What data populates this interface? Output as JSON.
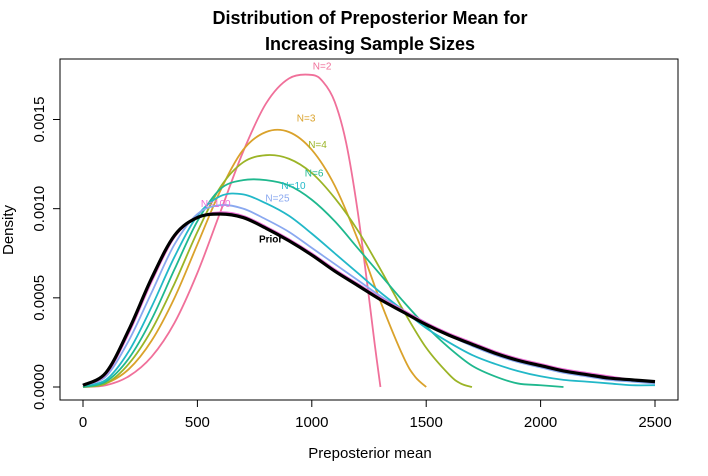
{
  "chart_data": {
    "type": "line",
    "title": [
      "Distribution of Preposterior Mean for",
      "Increasing Sample Sizes"
    ],
    "xlabel": "Preposterior mean",
    "ylabel": "Density",
    "xlim": [
      0,
      2500
    ],
    "ylim": [
      0,
      0.0018
    ],
    "x_ticks": [
      {
        "value": 0,
        "label": "0"
      },
      {
        "value": 500,
        "label": "500"
      },
      {
        "value": 1000,
        "label": "1000"
      },
      {
        "value": 1500,
        "label": "1500"
      },
      {
        "value": 2000,
        "label": "2000"
      },
      {
        "value": 2500,
        "label": "2500"
      }
    ],
    "y_ticks": [
      {
        "value": 0,
        "label": "0.0000"
      },
      {
        "value": 0.0005,
        "label": "0.0005"
      },
      {
        "value": 0.001,
        "label": "0.0010"
      },
      {
        "value": 0.0015,
        "label": "0.0015"
      }
    ],
    "grid": false,
    "series": [
      {
        "name": "N=2",
        "color": "#f0709a",
        "label_at": [
          1045,
          0.00178
        ],
        "x": [
          0,
          100,
          200,
          300,
          400,
          500,
          600,
          700,
          800,
          900,
          1000,
          1050,
          1100,
          1150,
          1200,
          1250,
          1275,
          1300
        ],
        "y": [
          0.0,
          1e-05,
          6e-05,
          0.00017,
          0.00036,
          0.00064,
          0.00098,
          0.00132,
          0.00159,
          0.00173,
          0.00175,
          0.00171,
          0.0016,
          0.00137,
          0.00099,
          0.0005,
          0.00024,
          0.0
        ]
      },
      {
        "name": "N=3",
        "color": "#daa22b",
        "label_at": [
          975,
          0.00149
        ],
        "x": [
          0,
          100,
          200,
          300,
          400,
          500,
          600,
          700,
          800,
          900,
          1000,
          1100,
          1200,
          1300,
          1400,
          1450,
          1500
        ],
        "y": [
          0.0,
          2e-05,
          0.0001,
          0.00026,
          0.0005,
          0.0008,
          0.0011,
          0.00133,
          0.00143,
          0.00143,
          0.00133,
          0.00113,
          0.00083,
          0.00048,
          0.00017,
          6e-05,
          0.0
        ]
      },
      {
        "name": "N=4",
        "color": "#9bb426",
        "label_at": [
          1025,
          0.00134
        ],
        "x": [
          0,
          100,
          200,
          300,
          400,
          500,
          600,
          700,
          800,
          900,
          1000,
          1100,
          1200,
          1300,
          1400,
          1500,
          1600,
          1650,
          1700
        ],
        "y": [
          0.0,
          2e-05,
          0.00013,
          0.00032,
          0.00058,
          0.00087,
          0.00112,
          0.00126,
          0.0013,
          0.00128,
          0.0012,
          0.00106,
          0.00088,
          0.00066,
          0.00043,
          0.00022,
          7e-05,
          2e-05,
          0.0
        ]
      },
      {
        "name": "N=6",
        "color": "#1fb88e",
        "label_at": [
          1010,
          0.00118
        ],
        "x": [
          0,
          100,
          200,
          300,
          400,
          500,
          600,
          700,
          800,
          900,
          1000,
          1100,
          1200,
          1300,
          1400,
          1500,
          1600,
          1700,
          1800,
          1900,
          2000,
          2100
        ],
        "y": [
          0.0,
          3e-05,
          0.00016,
          0.00038,
          0.00066,
          0.00093,
          0.00111,
          0.00116,
          0.00116,
          0.00113,
          0.00105,
          0.00093,
          0.00078,
          0.00063,
          0.00048,
          0.00034,
          0.00022,
          0.00012,
          6e-05,
          2e-05,
          1e-05,
          0.0
        ]
      },
      {
        "name": "N=10",
        "color": "#22b8c8",
        "label_at": [
          920,
          0.00111
        ],
        "x": [
          0,
          100,
          200,
          300,
          400,
          500,
          600,
          700,
          800,
          900,
          1000,
          1100,
          1200,
          1300,
          1400,
          1500,
          1600,
          1700,
          1800,
          1900,
          2000,
          2100,
          2200,
          2300,
          2400,
          2500
        ],
        "y": [
          1e-05,
          4e-05,
          0.0002,
          0.00045,
          0.00073,
          0.00096,
          0.00107,
          0.00108,
          0.00103,
          0.00096,
          0.00086,
          0.00075,
          0.00064,
          0.00053,
          0.00043,
          0.00033,
          0.00025,
          0.00018,
          0.00013,
          9e-05,
          6e-05,
          4e-05,
          3e-05,
          2e-05,
          1e-05,
          1e-05
        ]
      },
      {
        "name": "N=25",
        "color": "#8aa8f0",
        "label_at": [
          850,
          0.00104
        ],
        "x": [
          0,
          100,
          200,
          300,
          400,
          500,
          600,
          700,
          800,
          900,
          1000,
          1100,
          1200,
          1300,
          1400,
          1500,
          1600,
          1700,
          1800,
          1900,
          2000,
          2100,
          2200,
          2300,
          2400,
          2500
        ],
        "y": [
          1e-05,
          6e-05,
          0.00026,
          0.00053,
          0.0008,
          0.00097,
          0.00102,
          0.001,
          0.00094,
          0.00087,
          0.00078,
          0.00069,
          0.0006,
          0.00051,
          0.00043,
          0.00036,
          0.00029,
          0.00023,
          0.00018,
          0.00014,
          0.00011,
          8e-05,
          6e-05,
          4e-05,
          3e-05,
          2e-05
        ]
      },
      {
        "name": "N=100",
        "color": "#ee6fd8",
        "label_at": [
          580,
          0.00101
        ],
        "x": [
          0,
          100,
          200,
          300,
          400,
          500,
          600,
          700,
          800,
          900,
          1000,
          1100,
          1200,
          1300,
          1400,
          1500,
          1600,
          1700,
          1800,
          1900,
          2000,
          2100,
          2200,
          2300,
          2400,
          2500
        ],
        "y": [
          1e-05,
          7e-05,
          0.0003,
          0.00059,
          0.00084,
          0.00095,
          0.00098,
          0.00096,
          0.0009,
          0.00083,
          0.00075,
          0.00066,
          0.00058,
          0.0005,
          0.00043,
          0.00036,
          0.0003,
          0.00025,
          0.0002,
          0.00016,
          0.00013,
          0.0001,
          8e-05,
          6e-05,
          4e-05,
          3e-05
        ]
      },
      {
        "name": "Prior",
        "color": "#000000",
        "bold": true,
        "label_at": [
          820,
          0.00081
        ],
        "x": [
          0,
          100,
          200,
          300,
          400,
          500,
          600,
          700,
          800,
          900,
          1000,
          1100,
          1200,
          1300,
          1400,
          1500,
          1600,
          1700,
          1800,
          1900,
          2000,
          2100,
          2200,
          2300,
          2400,
          2500
        ],
        "y": [
          1e-05,
          8e-05,
          0.00032,
          0.00061,
          0.00085,
          0.00095,
          0.00097,
          0.00095,
          0.00089,
          0.00082,
          0.00074,
          0.00065,
          0.00057,
          0.00049,
          0.00042,
          0.00035,
          0.00029,
          0.00024,
          0.00019,
          0.00015,
          0.00012,
          9e-05,
          7e-05,
          5e-05,
          4e-05,
          3e-05
        ]
      }
    ]
  }
}
